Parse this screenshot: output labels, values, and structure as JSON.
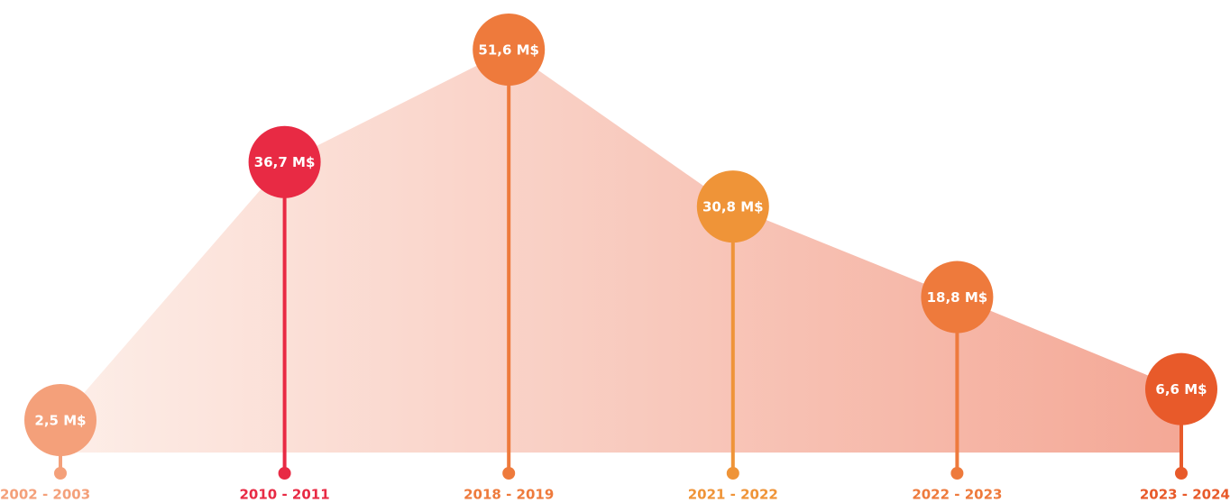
{
  "chart_data": {
    "type": "lollipop-area",
    "categories": [
      "2002 - 2003",
      "2010 - 2011",
      "2018 - 2019",
      "2021 - 2022",
      "2022 - 2023",
      "2023 - 2024"
    ],
    "values": [
      2.5,
      36.7,
      51.6,
      30.8,
      18.8,
      6.6
    ],
    "value_labels": [
      "2,5 M$",
      "36,7 M$",
      "51,6 M$",
      "30,8 M$",
      "18,8 M$",
      "6,6 M$"
    ],
    "colors": [
      "#f4a07a",
      "#e82a44",
      "#ee7a3c",
      "#ef9438",
      "#ee7a3c",
      "#e85a2a"
    ]
  }
}
